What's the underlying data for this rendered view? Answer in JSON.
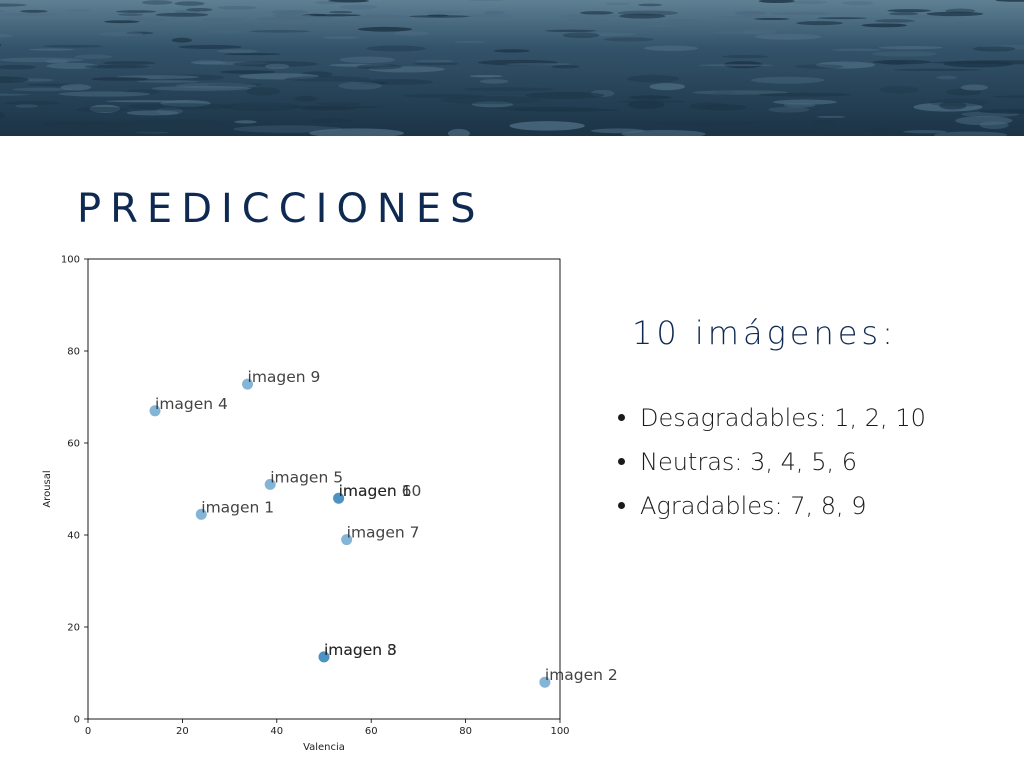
{
  "slide": {
    "title": "PREDICCIONES",
    "side_heading": "10 imágenes:",
    "bullets": [
      "Desagradables: 1, 2, 10",
      "Neutras: 3, 4, 5, 6",
      "Agradables: 7, 8, 9"
    ]
  },
  "colors": {
    "title": "#0f2a52",
    "point": "#1f77b4",
    "sea_dark": "#1d3547",
    "sea_light": "#4b6a7f"
  },
  "chart_data": {
    "type": "scatter",
    "xlabel": "Valencia",
    "ylabel": "Arousal",
    "xlim": [
      0,
      100
    ],
    "ylim": [
      0,
      100
    ],
    "xticks": [
      0,
      20,
      40,
      60,
      80,
      100
    ],
    "yticks": [
      0,
      20,
      40,
      60,
      80,
      100
    ],
    "grid": false,
    "points": [
      {
        "label": "imagen 1",
        "x": 24,
        "y": 44.5
      },
      {
        "label": "imagen 2",
        "x": 96.8,
        "y": 8
      },
      {
        "label": "imagen 3",
        "x": 50,
        "y": 13.5
      },
      {
        "label": "imagen 4",
        "x": 14.2,
        "y": 67
      },
      {
        "label": "imagen 5",
        "x": 38.6,
        "y": 51
      },
      {
        "label": "imagen 6",
        "x": 53.1,
        "y": 48
      },
      {
        "label": "imagen 7",
        "x": 54.8,
        "y": 39
      },
      {
        "label": "imagen 8",
        "x": 50,
        "y": 13.5
      },
      {
        "label": "imagen 9",
        "x": 33.8,
        "y": 72.8
      },
      {
        "label": "imagen 10",
        "x": 53.1,
        "y": 48
      }
    ]
  }
}
